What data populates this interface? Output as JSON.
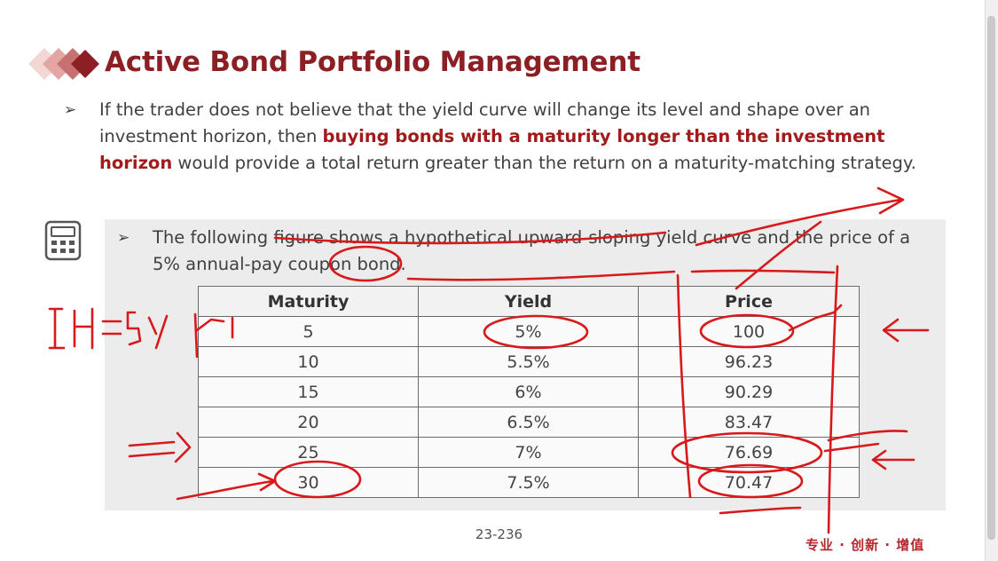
{
  "slide": {
    "title": "Active Bond Portfolio Management",
    "bullet1": {
      "part1": "If the trader does not believe that the yield curve will change its level and shape over an investment horizon, then ",
      "emphasis": "buying bonds with a maturity longer than the investment horizon",
      "part2": " would provide a total return greater than the return on a maturity-matching strategy."
    },
    "bullet2": "The following figure shows a hypothetical upward-sloping yield curve and the price of a 5% annual-pay coupon bond.",
    "table": {
      "headers": [
        "Maturity",
        "Yield",
        "Price"
      ],
      "rows": [
        [
          "5",
          "5%",
          "100"
        ],
        [
          "10",
          "5.5%",
          "96.23"
        ],
        [
          "15",
          "6%",
          "90.29"
        ],
        [
          "20",
          "6.5%",
          "83.47"
        ],
        [
          "25",
          "7%",
          "76.69"
        ],
        [
          "30",
          "7.5%",
          "70.47"
        ]
      ]
    },
    "page_number": "23-236",
    "footer_tagline": "专业 · 创新 · 增值"
  },
  "colors": {
    "title": "#8b1f24",
    "emphasis": "#a11b1b",
    "annotation_ink": "#d8191c",
    "panel_background": "#ececec"
  },
  "icons": {
    "bullet": "arrowhead-bullet",
    "calculator": "calculator-icon",
    "logo": "diamond-logo-icon"
  }
}
